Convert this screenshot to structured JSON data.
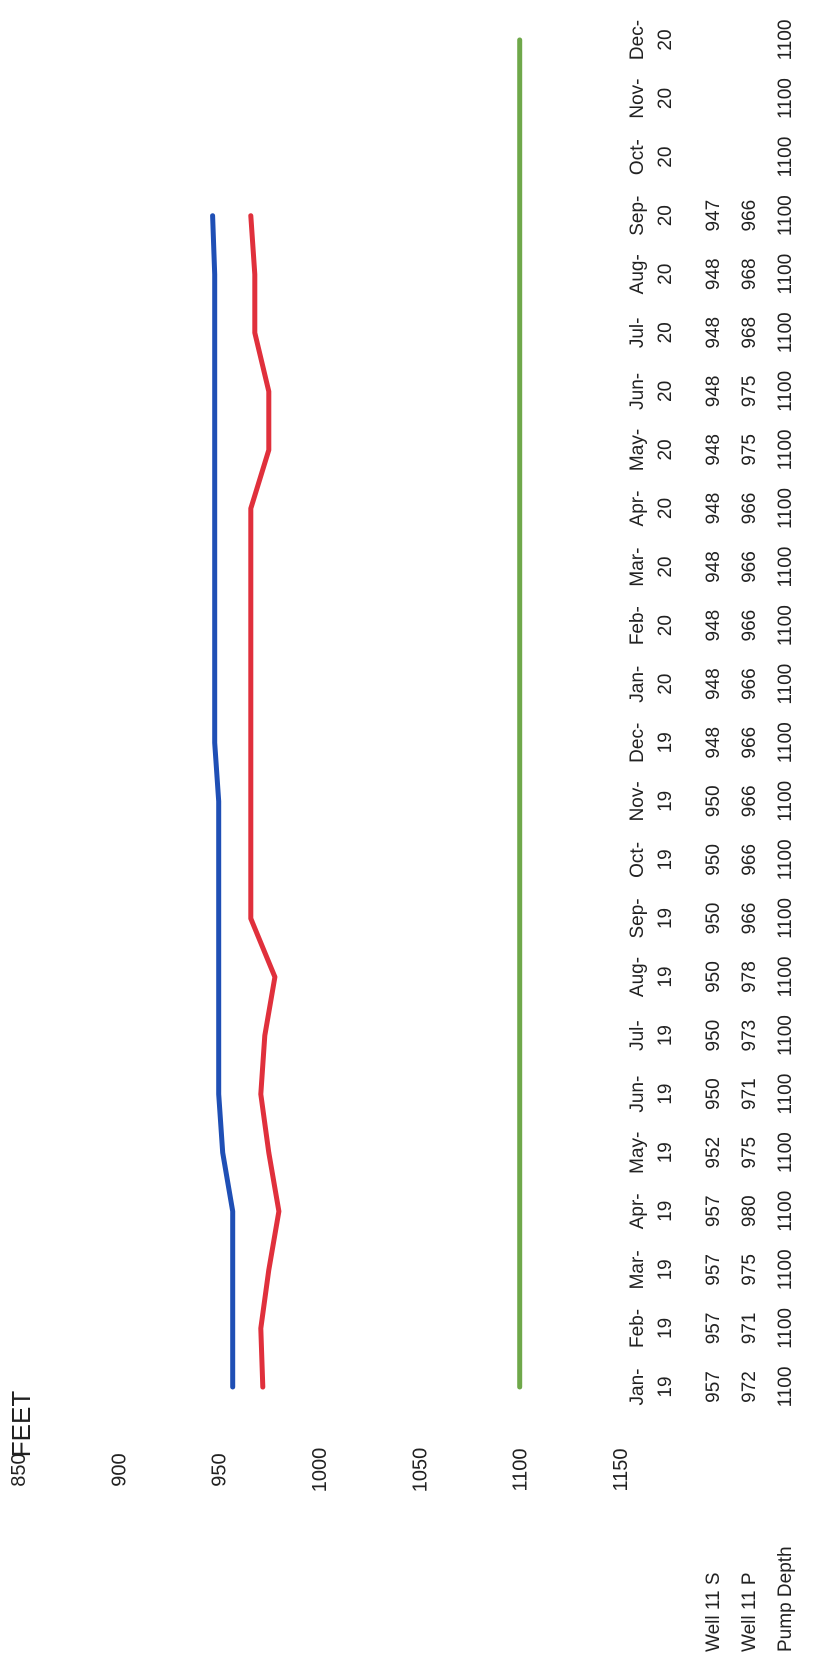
{
  "chart_data": {
    "type": "line",
    "ylabel": "FEET",
    "y_axis": {
      "min": 850,
      "max": 1150,
      "inverted": true,
      "ticks": [
        850,
        900,
        950,
        1000,
        1050,
        1100,
        1150
      ]
    },
    "categories": [
      [
        "Jan-",
        "19"
      ],
      [
        "Feb-",
        "19"
      ],
      [
        "Mar-",
        "19"
      ],
      [
        "Apr-",
        "19"
      ],
      [
        "May-",
        "19"
      ],
      [
        "Jun-",
        "19"
      ],
      [
        "Jul-",
        "19"
      ],
      [
        "Aug-",
        "19"
      ],
      [
        "Sep-",
        "19"
      ],
      [
        "Oct-",
        "19"
      ],
      [
        "Nov-",
        "19"
      ],
      [
        "Dec-",
        "19"
      ],
      [
        "Jan-",
        "20"
      ],
      [
        "Feb-",
        "20"
      ],
      [
        "Mar-",
        "20"
      ],
      [
        "Apr-",
        "20"
      ],
      [
        "May-",
        "20"
      ],
      [
        "Jun-",
        "20"
      ],
      [
        "Jul-",
        "20"
      ],
      [
        "Aug-",
        "20"
      ],
      [
        "Sep-",
        "20"
      ],
      [
        "Oct-",
        "20"
      ],
      [
        "Nov-",
        "20"
      ],
      [
        "Dec-",
        "20"
      ]
    ],
    "series": [
      {
        "name": "Well 11 S",
        "color": "#1f4fb5",
        "values": [
          957,
          957,
          957,
          957,
          952,
          950,
          950,
          950,
          950,
          950,
          950,
          948,
          948,
          948,
          948,
          948,
          948,
          948,
          948,
          948,
          947,
          null,
          null,
          null
        ]
      },
      {
        "name": "Well 11 P",
        "color": "#e0303c",
        "values": [
          972,
          971,
          975,
          980,
          975,
          971,
          973,
          978,
          966,
          966,
          966,
          966,
          966,
          966,
          966,
          966,
          975,
          975,
          968,
          968,
          966,
          null,
          null,
          null
        ]
      },
      {
        "name": "Pump Depth",
        "color": "#6fa84a",
        "values": [
          1100,
          1100,
          1100,
          1100,
          1100,
          1100,
          1100,
          1100,
          1100,
          1100,
          1100,
          1100,
          1100,
          1100,
          1100,
          1100,
          1100,
          1100,
          1100,
          1100,
          1100,
          1100,
          1100,
          1100
        ]
      }
    ],
    "legend": "data-table"
  }
}
